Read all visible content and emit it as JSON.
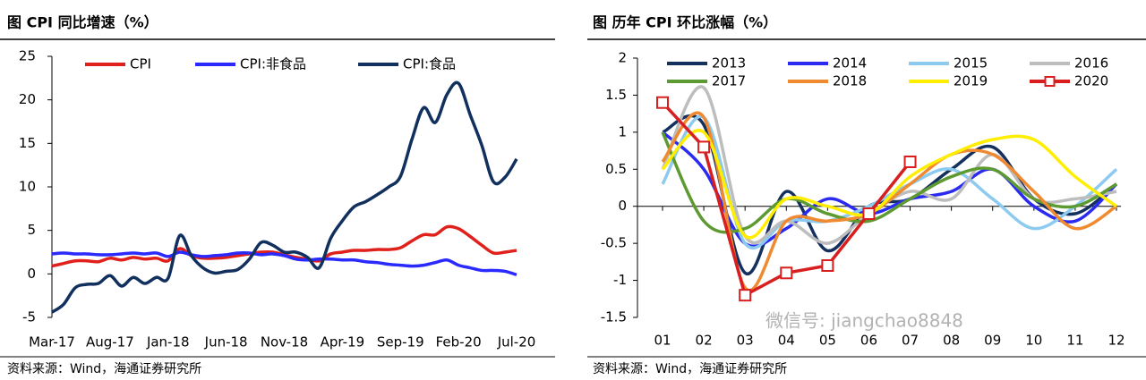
{
  "chart_data": [
    {
      "type": "line",
      "title": "图 CPI 同比增速（%）",
      "source": "资料来源：Wind，海通证券研究所",
      "smooth": true,
      "categories": [
        "Mar-17",
        null,
        null,
        null,
        null,
        "Aug-17",
        null,
        null,
        null,
        null,
        "Jan-18",
        null,
        null,
        null,
        null,
        "Jun-18",
        null,
        null,
        null,
        null,
        "Nov-18",
        null,
        null,
        null,
        null,
        "Apr-19",
        null,
        null,
        null,
        null,
        "Sep-19",
        null,
        null,
        null,
        null,
        "Feb-20",
        null,
        null,
        null,
        null,
        "Jul-20"
      ],
      "ylim": [
        -5,
        25
      ],
      "yticks": [
        -5,
        0,
        5,
        10,
        15,
        20,
        25
      ],
      "series": [
        {
          "name": "CPI",
          "color": "#e0201b",
          "values": [
            0.9,
            1.2,
            1.5,
            1.5,
            1.4,
            1.8,
            1.6,
            1.9,
            1.7,
            1.8,
            1.5,
            2.9,
            2.1,
            1.8,
            1.8,
            1.9,
            2.1,
            2.3,
            2.5,
            2.5,
            2.2,
            1.9,
            1.7,
            1.5,
            2.3,
            2.5,
            2.7,
            2.7,
            2.8,
            2.8,
            3.0,
            3.8,
            4.5,
            4.5,
            5.4,
            5.2,
            4.3,
            3.3,
            2.4,
            2.5,
            2.7
          ]
        },
        {
          "name": "CPI:非食品",
          "color": "#2a2aff",
          "values": [
            2.3,
            2.4,
            2.3,
            2.3,
            2.2,
            2.2,
            2.3,
            2.4,
            2.3,
            2.4,
            2.0,
            2.5,
            2.2,
            2.0,
            2.1,
            2.2,
            2.4,
            2.4,
            2.2,
            2.3,
            2.1,
            1.7,
            1.6,
            1.7,
            1.7,
            1.6,
            1.6,
            1.4,
            1.3,
            1.1,
            1.0,
            0.9,
            1.0,
            1.3,
            1.6,
            1.0,
            0.7,
            0.4,
            0.4,
            0.3,
            -0.1
          ]
        },
        {
          "name": "CPI:食品",
          "color": "#12305e",
          "values": [
            -4.4,
            -3.5,
            -1.6,
            -1.2,
            -1.1,
            -0.2,
            -1.4,
            -0.4,
            -1.1,
            -0.4,
            -0.5,
            4.4,
            2.1,
            0.7,
            0.1,
            0.3,
            0.5,
            1.7,
            3.6,
            3.3,
            2.5,
            2.5,
            1.9,
            0.7,
            4.1,
            6.1,
            7.7,
            8.3,
            9.1,
            10.0,
            11.2,
            15.5,
            19.1,
            17.4,
            20.6,
            21.9,
            18.3,
            14.8,
            10.6,
            11.1,
            13.2
          ]
        }
      ]
    },
    {
      "type": "line",
      "title": "图 历年 CPI 环比涨幅（%）",
      "source": "资料来源：Wind，海通证券研究所",
      "smooth": true,
      "categories": [
        "01",
        "02",
        "03",
        "04",
        "05",
        "06",
        "07",
        "08",
        "09",
        "10",
        "11",
        "12"
      ],
      "ylim": [
        -1.5,
        2
      ],
      "yticks": [
        -1.5,
        -1,
        -0.5,
        0,
        0.5,
        1,
        1.5,
        2
      ],
      "series": [
        {
          "name": "2013",
          "color": "#14305e",
          "values": [
            1.0,
            1.1,
            -0.9,
            0.2,
            -0.6,
            0.0,
            0.1,
            0.5,
            0.8,
            0.1,
            -0.1,
            0.3
          ]
        },
        {
          "name": "2014",
          "color": "#2a2af0",
          "values": [
            1.0,
            0.5,
            -0.5,
            -0.3,
            0.1,
            -0.1,
            0.1,
            0.2,
            0.5,
            0.0,
            -0.2,
            0.3
          ]
        },
        {
          "name": "2015",
          "color": "#8ccaf0",
          "values": [
            0.3,
            1.2,
            -0.5,
            -0.2,
            -0.2,
            0.0,
            0.3,
            0.5,
            0.1,
            -0.3,
            0.0,
            0.5
          ]
        },
        {
          "name": "2016",
          "color": "#bdbdbd",
          "values": [
            0.5,
            1.6,
            -0.4,
            -0.2,
            -0.5,
            -0.1,
            0.2,
            0.1,
            0.7,
            0.1,
            0.1,
            0.2
          ]
        },
        {
          "name": "2017",
          "color": "#5e9a32",
          "values": [
            1.0,
            -0.2,
            -0.3,
            0.1,
            -0.1,
            -0.2,
            0.1,
            0.4,
            0.5,
            0.1,
            0.0,
            0.3
          ]
        },
        {
          "name": "2018",
          "color": "#f08a30",
          "values": [
            0.6,
            1.2,
            -1.1,
            -0.2,
            -0.2,
            -0.1,
            0.3,
            0.7,
            0.7,
            0.2,
            -0.3,
            0.0
          ]
        },
        {
          "name": "2019",
          "color": "#ffee00",
          "values": [
            0.5,
            1.0,
            -0.4,
            0.1,
            0.0,
            -0.1,
            0.4,
            0.7,
            0.9,
            0.9,
            0.4,
            0.0
          ]
        },
        {
          "name": "2020",
          "color": "#d81e1e",
          "smooth": false,
          "marker": "square",
          "values": [
            1.4,
            0.8,
            -1.2,
            -0.9,
            -0.8,
            -0.1,
            0.6,
            null,
            null,
            null,
            null,
            null
          ]
        }
      ],
      "watermark": "微信号: jiangchao8848"
    }
  ]
}
